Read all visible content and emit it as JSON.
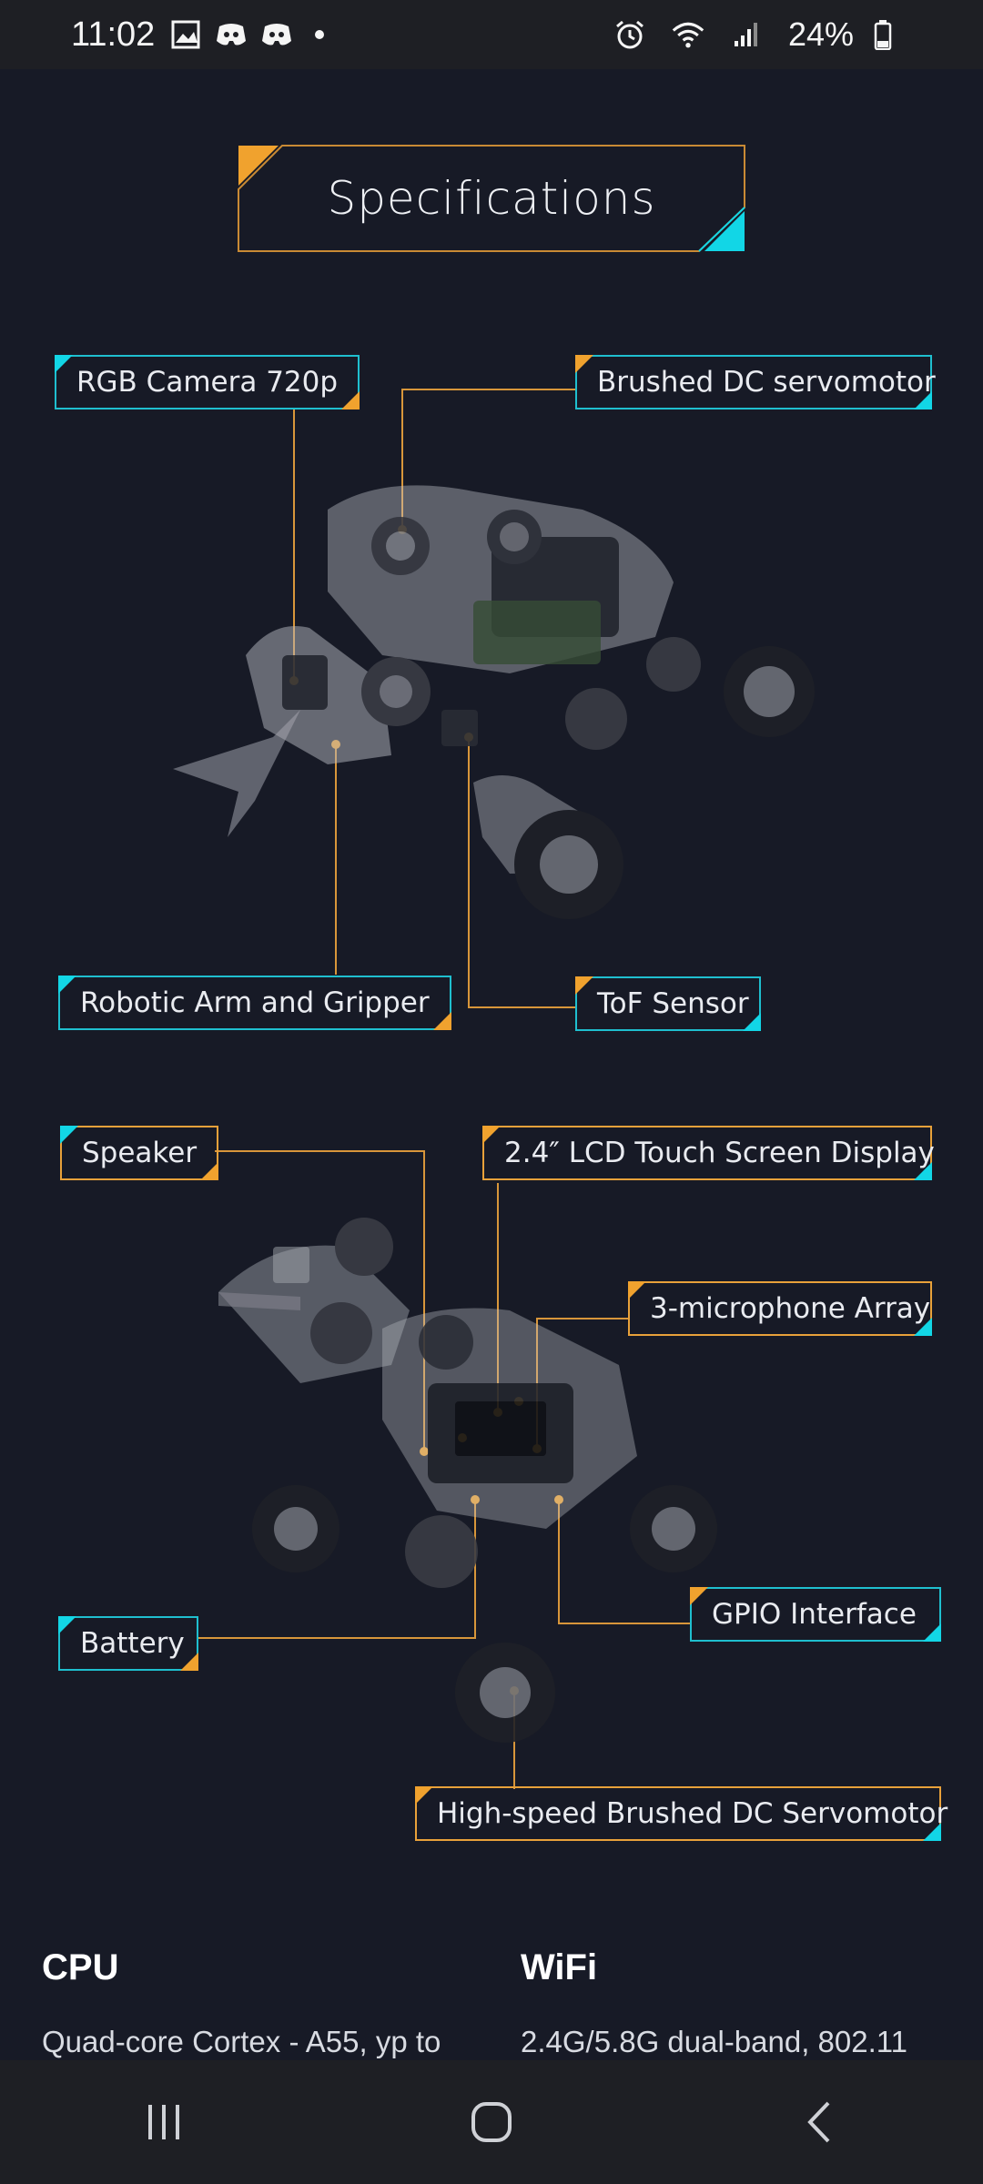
{
  "status_bar": {
    "time": "11:02",
    "battery": "24%",
    "icons": [
      "gallery-icon",
      "discord-icon",
      "discord-icon",
      "dot",
      "alarm-icon",
      "wifi-icon",
      "signal-icon",
      "battery-icon"
    ]
  },
  "heading": {
    "title": "Specifications"
  },
  "callouts": {
    "rgb_camera": "RGB Camera 720p",
    "brushed_servo": "Brushed DC servomotor",
    "robotic_arm": "Robotic Arm and Gripper",
    "tof_sensor": "ToF Sensor",
    "speaker": "Speaker",
    "lcd": "2.4″ LCD Touch Screen Display",
    "microphone": "3-microphone Array",
    "gpio": "GPIO Interface",
    "battery": "Battery",
    "high_speed_servo": "High-speed Brushed DC Servomotor"
  },
  "specs": {
    "cpu": {
      "title": "CPU",
      "value": "Quad-core Cortex - A55, yp to"
    },
    "wifi": {
      "title": "WiFi",
      "value": "2.4G/5.8G dual-band, 802.11"
    }
  },
  "colors": {
    "accent_orange": "#e8a13a",
    "accent_cyan": "#12d6e6",
    "background": "#171a26"
  },
  "nav": {
    "icons": [
      "recent-apps-icon",
      "home-icon",
      "back-icon"
    ]
  }
}
